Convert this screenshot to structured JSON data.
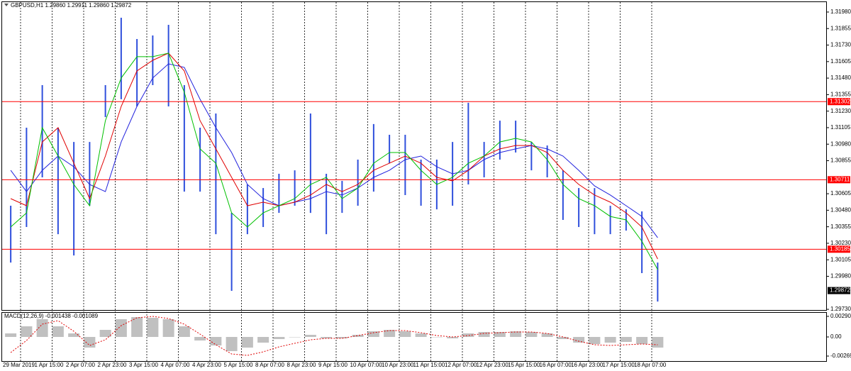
{
  "chart_data": [
    {
      "type": "hlbar",
      "title": "GBPUSD,H1  1.29860 1.29911 1.29860 1.29872",
      "color": "#2f4fdc",
      "categories": [
        "29 Mar 2019",
        null,
        "1 Apr 15:00",
        null,
        "2 Apr 07:00",
        null,
        "2 Apr 23:00",
        null,
        "3 Apr 15:00",
        null,
        "4 Apr 07:00",
        null,
        "4 Apr 23:00",
        null,
        "5 Apr 15:00",
        null,
        "8 Apr 07:00",
        null,
        "8 Apr 23:00",
        null,
        "9 Apr 15:00",
        null,
        "10 Apr 07:00",
        null,
        "10 Apr 23:00",
        null,
        "11 Apr 15:00",
        null,
        "12 Apr 07:00",
        null,
        "12 Apr 23:00",
        null,
        "15 Apr 15:00",
        null,
        "16 Apr 07:00",
        null,
        "16 Apr 23:00",
        null,
        "17 Apr 15:00",
        null,
        "18 Apr 07:00",
        null
      ],
      "high": [
        1.30514,
        1.31105,
        1.31427,
        1.31105,
        1.30997,
        1.30997,
        1.31427,
        1.31937,
        1.31776,
        1.31803,
        1.31883,
        1.31427,
        1.31105,
        1.31212,
        1.3046,
        1.30675,
        1.30648,
        1.30756,
        1.30782,
        1.31212,
        1.30756,
        1.30702,
        1.30863,
        1.31132,
        1.31051,
        1.31051,
        1.30863,
        1.30863,
        1.30997,
        1.31293,
        1.30997,
        1.31158,
        1.31158,
        1.30997,
        1.3097,
        1.30782,
        1.30648,
        1.30648,
        1.30514,
        1.30487,
        1.30471,
        1.30084
      ],
      "low": [
        1.30084,
        1.30353,
        1.30729,
        1.30299,
        1.30138,
        1.30514,
        1.31185,
        1.3132,
        1.31266,
        1.31427,
        1.31266,
        1.30621,
        1.30621,
        1.30299,
        1.2987,
        1.30299,
        1.30353,
        1.3046,
        1.30514,
        1.3046,
        1.30299,
        1.3046,
        1.30514,
        1.30621,
        1.30836,
        1.30595,
        1.30514,
        1.30487,
        1.30514,
        1.30675,
        1.30729,
        1.30863,
        1.30917,
        1.30782,
        1.30729,
        1.30407,
        1.30353,
        1.30299,
        1.30299,
        1.30326,
        1.30004,
        1.29789
      ],
      "lines": [
        {
          "color": "#2222dd",
          "values": [
            1.30782,
            1.30621,
            1.30782,
            1.3089,
            1.30809,
            1.30675,
            1.30621,
            1.30997,
            1.31266,
            1.31481,
            1.31588,
            1.31561,
            1.3132,
            1.31105,
            1.30917,
            1.30675,
            1.30568,
            1.30514,
            1.30541,
            1.30568,
            1.30621,
            1.30595,
            1.30648,
            1.30729,
            1.30782,
            1.30863,
            1.3089,
            1.30809,
            1.30756,
            1.30782,
            1.30863,
            1.30917,
            1.30944,
            1.3097,
            1.30944,
            1.3089,
            1.30782,
            1.30664,
            1.30595,
            1.30514,
            1.30433,
            1.30272
          ]
        },
        {
          "color": "#e00000",
          "values": [
            1.30568,
            1.30514,
            1.30997,
            1.31105,
            1.30836,
            1.30568,
            1.3089,
            1.31266,
            1.31534,
            1.31615,
            1.31669,
            1.31534,
            1.31158,
            1.30944,
            1.30729,
            1.30514,
            1.30541,
            1.30514,
            1.30541,
            1.30595,
            1.30675,
            1.30621,
            1.30675,
            1.30782,
            1.30836,
            1.3089,
            1.30836,
            1.30729,
            1.30702,
            1.30782,
            1.3089,
            1.30944,
            1.3097,
            1.3097,
            1.30917,
            1.30782,
            1.30675,
            1.30595,
            1.30541,
            1.3046,
            1.30353,
            1.30111
          ]
        },
        {
          "color": "#00c000",
          "values": [
            1.30353,
            1.3046,
            1.31105,
            1.3089,
            1.30675,
            1.30514,
            1.31158,
            1.31481,
            1.31642,
            1.31642,
            1.31669,
            1.31373,
            1.30944,
            1.30836,
            1.3046,
            1.30353,
            1.3046,
            1.30514,
            1.30568,
            1.30675,
            1.30729,
            1.30568,
            1.30648,
            1.30836,
            1.30917,
            1.30917,
            1.30782,
            1.30675,
            1.30729,
            1.30836,
            1.3089,
            1.30997,
            1.31024,
            1.30997,
            1.30863,
            1.30675,
            1.30568,
            1.30514,
            1.30433,
            1.30407,
            1.30245,
            1.30031
          ]
        }
      ],
      "levels": [
        1.31302,
        1.30711,
        1.30185
      ],
      "level_color": "#ff0000",
      "last_price": 1.29872,
      "ylim": [
        1.29725,
        1.32055
      ],
      "yticks": [
        {
          "value": 1.3198,
          "label": "1.31980"
        },
        1.31855,
        {
          "value": 1.3173,
          "label": "1.31730"
        },
        1.31605,
        {
          "value": 1.3148,
          "label": "1.31480"
        },
        1.31355,
        {
          "value": 1.3123,
          "label": "1.31230"
        },
        1.31105,
        {
          "value": 1.3098,
          "label": "1.30980"
        },
        1.30855,
        1.30605,
        {
          "value": 1.3048,
          "label": "1.30480"
        },
        1.30355,
        {
          "value": 1.3023,
          "label": "1.30230"
        },
        1.30105,
        {
          "value": 1.2998,
          "label": "1.29980"
        },
        {
          "value": 1.2973,
          "label": "1.29730"
        }
      ]
    },
    {
      "type": "macd",
      "title": "MACD(12,26,9) -0.001438 -0.001089",
      "color": "#c0c0c0",
      "signal_color": "#e00000",
      "histogram": [
        0.0005,
        0.0015,
        0.0025,
        0.0015,
        0.0005,
        -0.0015,
        0.001,
        0.0025,
        0.0028,
        0.0027,
        0.0025,
        0.0015,
        -0.0005,
        -0.0012,
        -0.002,
        -0.0015,
        -0.0008,
        -0.0003,
        0,
        0.0003,
        -0.0002,
        -0.0002,
        0.0003,
        0.0008,
        0.001,
        0.0008,
        0.0005,
        0,
        -0.0002,
        0.0005,
        0.0007,
        0.0007,
        0.0008,
        0.0007,
        0.0005,
        -0.0003,
        -0.0008,
        -0.001,
        -0.0008,
        -0.0007,
        -0.001,
        -0.0015
      ],
      "signal": [
        -0.0022,
        -0.0005,
        0.0018,
        0.0023,
        0.0008,
        -0.0012,
        -0.0004,
        0.0016,
        0.0027,
        0.0029,
        0.0026,
        0.0018,
        0.0004,
        -0.0011,
        -0.0024,
        -0.0026,
        -0.0021,
        -0.0014,
        -0.0009,
        -0.0004,
        -0.0002,
        -0.0002,
        0.0002,
        0.0006,
        0.0009,
        0.0009,
        0.0006,
        0.0002,
        0,
        0.0002,
        0.0005,
        0.0006,
        0.0007,
        0.0007,
        0.0005,
        0,
        -0.0006,
        -0.0011,
        -0.0012,
        -0.0011,
        -0.001,
        -0.0011
      ],
      "ylim": [
        -0.0035,
        0.0035
      ],
      "yticks": [
        0.002906,
        {
          "value": 0,
          "label": "0.00"
        },
        -0.002697
      ]
    }
  ]
}
